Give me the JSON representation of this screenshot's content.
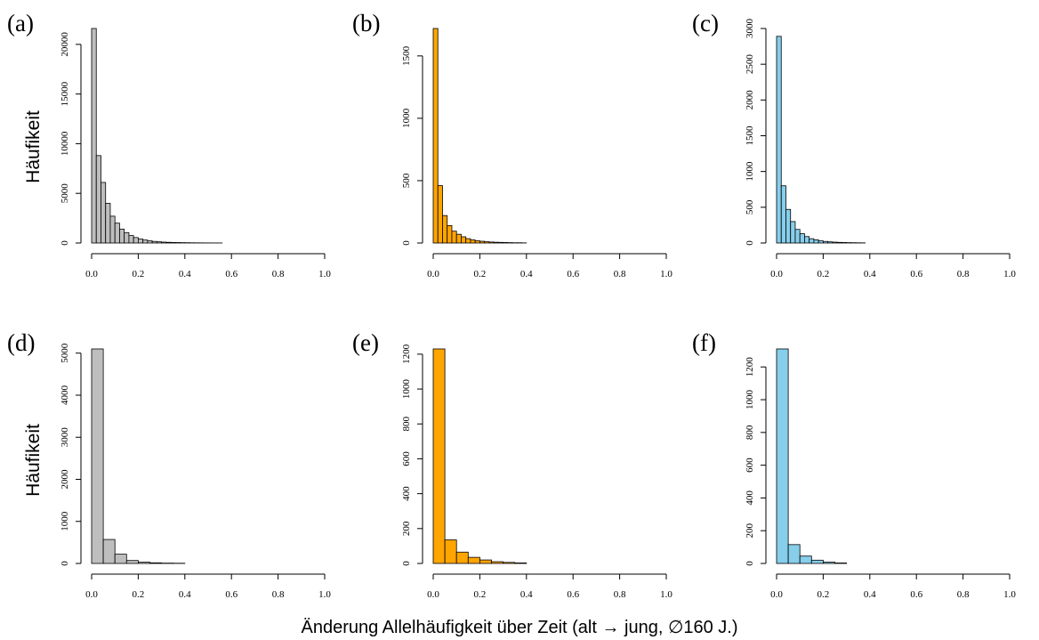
{
  "figure": {
    "y_axis_label": "Häufikeit",
    "x_axis_label": "Änderung Allelhäufigkeit über Zeit (alt → jung, ∅160 J.)"
  },
  "chart_data": [
    {
      "type": "bar",
      "panel": "(a)",
      "color": "#bebebe",
      "bin_width": 0.02,
      "bin_start": 0.0,
      "values": [
        21600,
        8800,
        6100,
        4000,
        2700,
        2000,
        1400,
        1050,
        750,
        550,
        400,
        300,
        220,
        160,
        120,
        90,
        70,
        55,
        45,
        35,
        28,
        22,
        18,
        14,
        11,
        9,
        7,
        5
      ],
      "xlim": [
        0,
        1
      ],
      "ylim": [
        0,
        21600
      ],
      "x_ticks": [
        "0.0",
        "0.2",
        "0.4",
        "0.6",
        "0.8",
        "1.0"
      ],
      "y_ticks": [
        "0",
        "5000",
        "10000",
        "15000",
        "20000"
      ]
    },
    {
      "type": "bar",
      "panel": "(b)",
      "color": "#ffa500",
      "bin_width": 0.02,
      "bin_start": 0.0,
      "values": [
        1720,
        460,
        220,
        140,
        95,
        70,
        50,
        35,
        25,
        18,
        14,
        10,
        8,
        6,
        5,
        4,
        3,
        2,
        2,
        1
      ],
      "xlim": [
        0,
        1
      ],
      "ylim": [
        0,
        1720
      ],
      "x_ticks": [
        "0.0",
        "0.2",
        "0.4",
        "0.6",
        "0.8",
        "1.0"
      ],
      "y_ticks": [
        "0",
        "500",
        "1000",
        "1500"
      ]
    },
    {
      "type": "bar",
      "panel": "(c)",
      "color": "#87ceeb",
      "bin_width": 0.02,
      "bin_start": 0.0,
      "values": [
        2890,
        800,
        470,
        300,
        190,
        130,
        90,
        60,
        45,
        30,
        22,
        16,
        12,
        9,
        7,
        5,
        4,
        3,
        2
      ],
      "xlim": [
        0,
        1
      ],
      "ylim": [
        0,
        3000
      ],
      "x_ticks": [
        "0.0",
        "0.2",
        "0.4",
        "0.6",
        "0.8",
        "1.0"
      ],
      "y_ticks": [
        "0",
        "500",
        "1000",
        "1500",
        "2000",
        "2500",
        "3000"
      ]
    },
    {
      "type": "bar",
      "panel": "(d)",
      "color": "#bebebe",
      "bin_width": 0.05,
      "bin_start": 0.0,
      "values": [
        5100,
        570,
        220,
        70,
        30,
        15,
        8,
        5
      ],
      "xlim": [
        0,
        1
      ],
      "ylim": [
        0,
        5100
      ],
      "x_ticks": [
        "0.0",
        "0.2",
        "0.4",
        "0.6",
        "0.8",
        "1.0"
      ],
      "y_ticks": [
        "0",
        "1000",
        "2000",
        "3000",
        "4000",
        "5000"
      ]
    },
    {
      "type": "bar",
      "panel": "(e)",
      "color": "#ffa500",
      "bin_width": 0.05,
      "bin_start": 0.0,
      "values": [
        1230,
        135,
        65,
        35,
        20,
        10,
        6,
        3
      ],
      "xlim": [
        0,
        1
      ],
      "ylim": [
        0,
        1230
      ],
      "x_ticks": [
        "0.0",
        "0.2",
        "0.4",
        "0.6",
        "0.8",
        "1.0"
      ],
      "y_ticks": [
        "0",
        "200",
        "400",
        "600",
        "800",
        "1000",
        "1200"
      ]
    },
    {
      "type": "bar",
      "panel": "(f)",
      "color": "#87ceeb",
      "bin_width": 0.05,
      "bin_start": 0.0,
      "values": [
        1310,
        115,
        45,
        20,
        8,
        3
      ],
      "xlim": [
        0,
        1
      ],
      "ylim": [
        0,
        1310
      ],
      "x_ticks": [
        "0.0",
        "0.2",
        "0.4",
        "0.6",
        "0.8",
        "1.0"
      ],
      "y_ticks": [
        "0",
        "200",
        "400",
        "600",
        "800",
        "1000",
        "1200"
      ]
    }
  ]
}
